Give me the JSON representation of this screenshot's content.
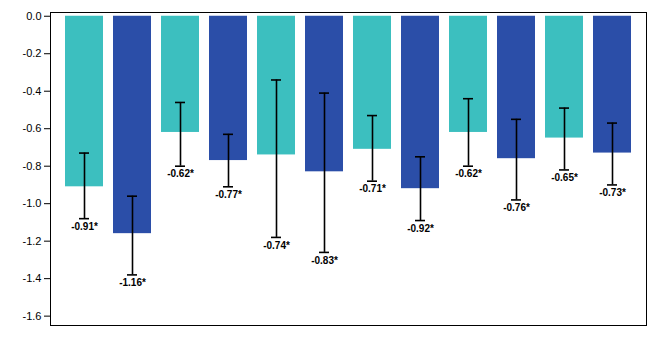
{
  "chart_data": {
    "type": "bar",
    "categories": [
      null,
      null,
      null,
      null,
      null,
      null,
      null,
      null,
      null,
      null,
      null,
      null
    ],
    "values": [
      -0.91,
      -1.16,
      -0.62,
      -0.77,
      -0.74,
      -0.83,
      -0.71,
      -0.92,
      -0.62,
      -0.76,
      -0.65,
      -0.73
    ],
    "value_labels": [
      "-0.91*",
      "-1.16*",
      "-0.62*",
      "-0.77*",
      "-0.74*",
      "-0.83*",
      "-0.71*",
      "-0.92*",
      "-0.62*",
      "-0.76*",
      "-0.65*",
      "-0.73*"
    ],
    "err_low": [
      -1.08,
      -1.38,
      -0.8,
      -0.91,
      -1.18,
      -1.26,
      -0.88,
      -1.09,
      -0.8,
      -0.98,
      -0.82,
      -0.9
    ],
    "err_high": [
      -0.73,
      -0.96,
      -0.46,
      -0.63,
      -0.34,
      -0.41,
      -0.53,
      -0.75,
      -0.44,
      -0.55,
      -0.49,
      -0.57
    ],
    "colors": [
      "#3CBFBF",
      "#2B4EA8",
      "#3CBFBF",
      "#2B4EA8",
      "#3CBFBF",
      "#2B4EA8",
      "#3CBFBF",
      "#2B4EA8",
      "#3CBFBF",
      "#2B4EA8",
      "#3CBFBF",
      "#2B4EA8"
    ],
    "ylim": [
      -1.65,
      0.02
    ],
    "yticks": [
      {
        "value": 0,
        "label": "0.0"
      },
      -0.2,
      -0.4,
      -0.6,
      -0.8,
      {
        "value": -1,
        "label": "-1.0"
      },
      -1.2,
      -1.4,
      -1.6
    ],
    "data_labels": true,
    "tick_labels": "y",
    "grid": false
  }
}
